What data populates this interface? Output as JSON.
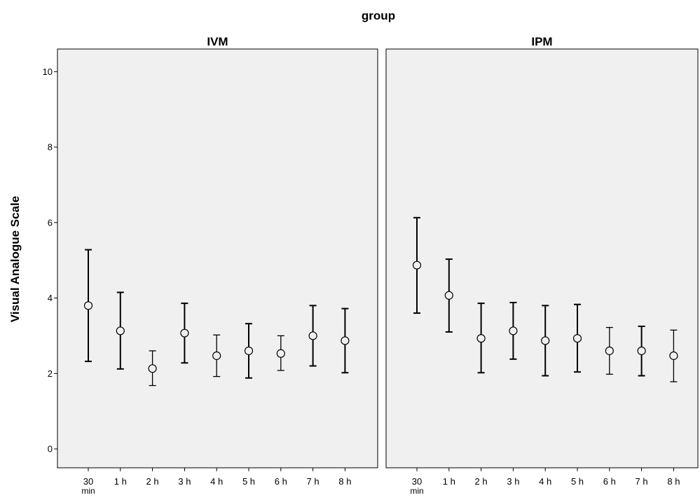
{
  "chart_data": {
    "type": "scatter",
    "subtype": "error-bar",
    "group_title": "group",
    "ylabel": "Visual Analogue Scale",
    "ylim": [
      -0.5,
      10.6
    ],
    "yticks": [
      0,
      2,
      4,
      6,
      8,
      10
    ],
    "categories": [
      "30",
      "1 h",
      "2 h",
      "3 h",
      "4 h",
      "5 h",
      "6 h",
      "7 h",
      "8 h"
    ],
    "first_category_sub": "min",
    "grid": false,
    "panels": [
      {
        "title": "IVM",
        "mean": [
          3.8,
          3.13,
          2.13,
          3.07,
          2.47,
          2.6,
          2.53,
          3.0,
          2.87
        ],
        "lower": [
          2.32,
          2.12,
          1.68,
          2.28,
          1.92,
          1.88,
          2.08,
          2.2,
          2.02
        ],
        "upper": [
          5.28,
          4.15,
          2.6,
          3.86,
          3.02,
          3.32,
          3.0,
          3.8,
          3.72
        ]
      },
      {
        "title": "IPM",
        "mean": [
          4.87,
          4.07,
          2.93,
          3.13,
          2.87,
          2.93,
          2.6,
          2.6,
          2.47
        ],
        "lower": [
          3.6,
          3.1,
          2.02,
          2.38,
          1.94,
          2.04,
          1.98,
          1.94,
          1.78
        ],
        "upper": [
          6.13,
          5.03,
          3.86,
          3.88,
          3.8,
          3.83,
          3.22,
          3.25,
          3.15
        ]
      }
    ]
  }
}
